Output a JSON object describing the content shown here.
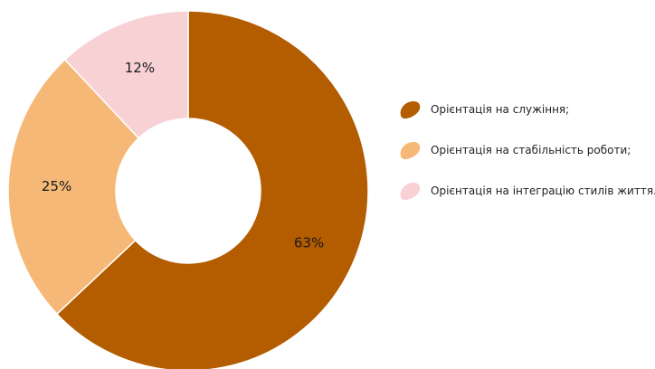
{
  "chart_data": {
    "type": "pie",
    "donut": true,
    "categories": [
      "Орієнтація на служіння;",
      "Орієнтація на стабільність роботи;",
      "Орієнтація на інтеграцію стилів життя."
    ],
    "values": [
      63,
      25,
      12
    ],
    "value_labels": [
      "63%",
      "25%",
      "12%"
    ],
    "colors": [
      "#b35c00",
      "#f5b877",
      "#f7d1d3"
    ],
    "start_angle": "12 o'clock",
    "direction": "clockwise",
    "legend": "right"
  }
}
